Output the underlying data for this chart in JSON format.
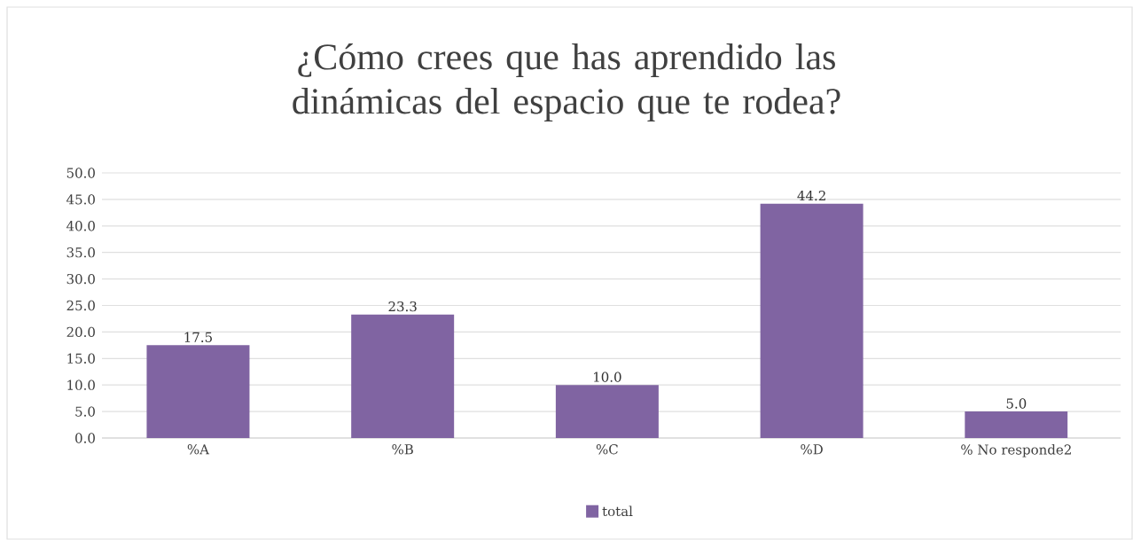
{
  "chart_data": {
    "type": "bar",
    "title": "¿Cómo crees que has aprendido las dinámicas del espacio que te rodea?",
    "categories": [
      "%A",
      "%B",
      "%C",
      "%D",
      "% No responde2"
    ],
    "series": [
      {
        "name": "total",
        "color": "#8064a2",
        "values": [
          17.5,
          23.3,
          10.0,
          44.2,
          5.0
        ],
        "value_labels": [
          "17.5",
          "23.3",
          "10.0",
          "44.2",
          "5.0"
        ]
      }
    ],
    "ylim": [
      0,
      50
    ],
    "yticks": [
      {
        "value": 0,
        "label": "0.0"
      },
      {
        "value": 5,
        "label": "5.0"
      },
      {
        "value": 10,
        "label": "10.0"
      },
      {
        "value": 15,
        "label": "15.0"
      },
      {
        "value": 20,
        "label": "20.0"
      },
      {
        "value": 25,
        "label": "25.0"
      },
      {
        "value": 30,
        "label": "30.0"
      },
      {
        "value": 35,
        "label": "35.0"
      },
      {
        "value": 40,
        "label": "40.0"
      },
      {
        "value": 45,
        "label": "45.0"
      },
      {
        "value": 50,
        "label": "50.0"
      }
    ],
    "grid": "y",
    "legend": "bottom"
  }
}
